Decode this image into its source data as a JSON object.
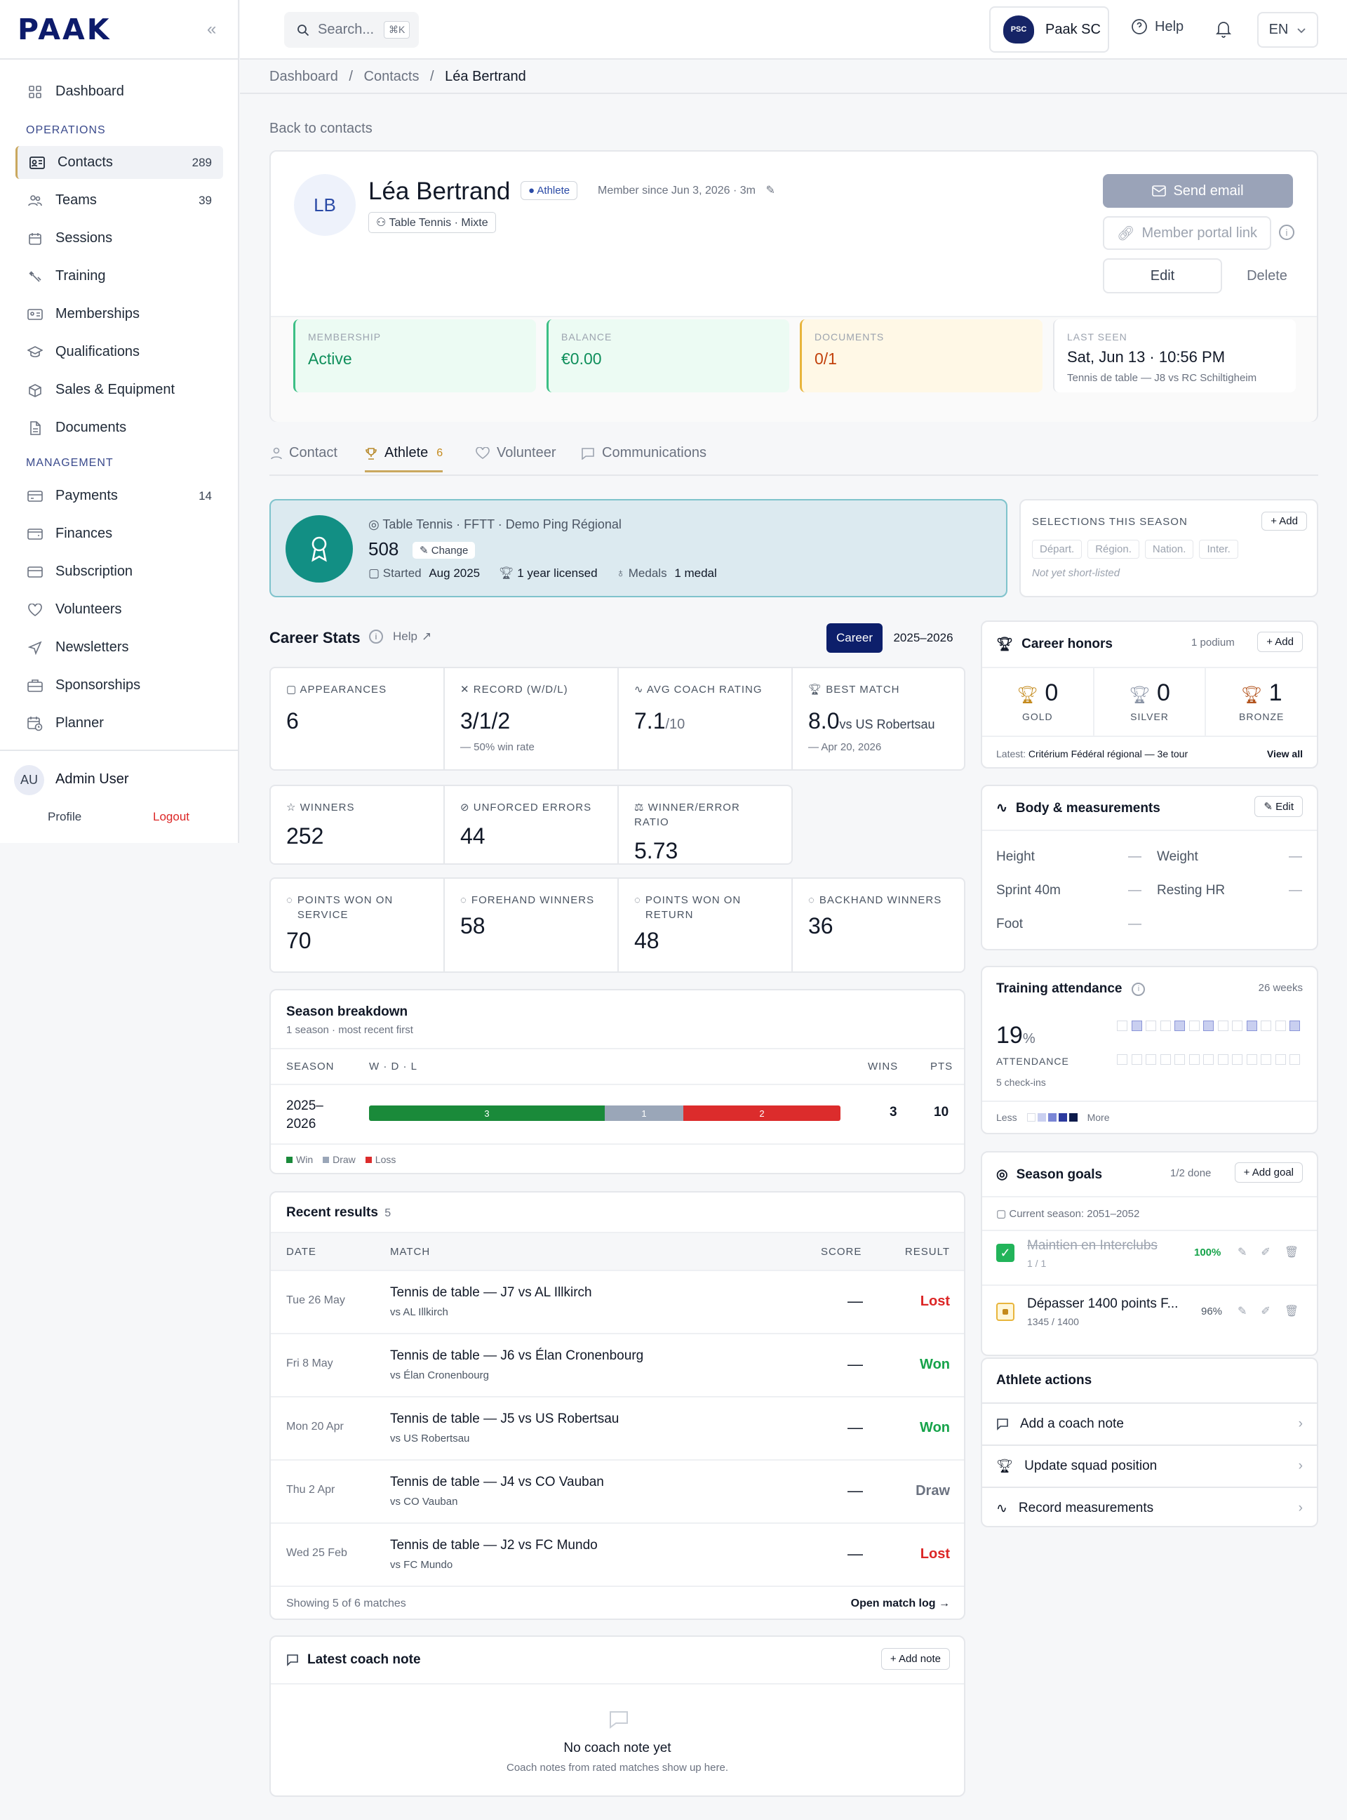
{
  "app": {
    "logo": "PAAK",
    "club_name": "Paak SC",
    "help": "Help",
    "lang": "EN",
    "search_placeholder": "Search...",
    "search_shortcut": "⌘K"
  },
  "sidebar": {
    "dashboard": "Dashboard",
    "operations_label": "OPERATIONS",
    "items_ops": [
      {
        "label": "Contacts",
        "count": "289"
      },
      {
        "label": "Teams",
        "count": "39"
      },
      {
        "label": "Sessions",
        "count": ""
      },
      {
        "label": "Training",
        "count": ""
      },
      {
        "label": "Memberships",
        "count": ""
      },
      {
        "label": "Qualifications",
        "count": ""
      },
      {
        "label": "Sales & Equipment",
        "count": ""
      },
      {
        "label": "Documents",
        "count": ""
      }
    ],
    "management_label": "MANAGEMENT",
    "items_mgmt": [
      {
        "label": "Payments",
        "count": "14"
      },
      {
        "label": "Finances",
        "count": ""
      },
      {
        "label": "Subscription",
        "count": ""
      },
      {
        "label": "Volunteers",
        "count": ""
      },
      {
        "label": "Newsletters",
        "count": ""
      },
      {
        "label": "Sponsorships",
        "count": ""
      },
      {
        "label": "Planner",
        "count": ""
      }
    ],
    "user": {
      "initials": "AU",
      "name": "Admin User",
      "profile": "Profile",
      "logout": "Logout"
    }
  },
  "breadcrumb": {
    "a": "Dashboard",
    "b": "Contacts",
    "c": "Léa Bertrand"
  },
  "back_link": "Back to contacts",
  "profile": {
    "initials": "LB",
    "name": "Léa Bertrand",
    "role_badge": "Athlete",
    "member_since": "Member since Jun 3, 2026 · 3m",
    "sport": "Table Tennis · Mixte",
    "send_email": "Send email",
    "portal_link": "Member portal link",
    "edit": "Edit",
    "delete": "Delete"
  },
  "summary": [
    {
      "label": "MEMBERSHIP",
      "value": "Active",
      "sub": ""
    },
    {
      "label": "BALANCE",
      "value": "€0.00",
      "sub": ""
    },
    {
      "label": "DOCUMENTS",
      "value": "0/1",
      "sub": ""
    },
    {
      "label": "LAST SEEN",
      "value": "Sat, Jun 13 · 10:56 PM",
      "sub": "Tennis de table — J8 vs RC Schiltigheim"
    }
  ],
  "tabs": [
    {
      "label": "Contact"
    },
    {
      "label": "Athlete",
      "count": "6"
    },
    {
      "label": "Volunteer"
    },
    {
      "label": "Communications"
    }
  ],
  "licence": {
    "federation": "Table Tennis · FFTT · Demo Ping Régional",
    "ranking": "508",
    "change": "Change",
    "started_label": "Started",
    "started": "Aug 2025",
    "licensed": "1 year licensed",
    "medals_label": "Medals",
    "medals": "1 medal"
  },
  "selections": {
    "title": "SELECTIONS THIS SEASON",
    "add": "Add",
    "levels": [
      "Départ.",
      "Région.",
      "Nation.",
      "Inter."
    ],
    "note": "Not yet short-listed"
  },
  "career": {
    "title": "Career Stats",
    "help": "Help",
    "toggle_a": "Career",
    "toggle_b": "2025–2026",
    "row1": [
      {
        "label": "APPEARANCES",
        "value": "6",
        "unit": "",
        "sub": ""
      },
      {
        "label": "RECORD (W/D/L)",
        "value": "3/1/2",
        "unit": "",
        "sub": "— 50% win rate"
      },
      {
        "label": "AVG COACH RATING",
        "value": "7.1",
        "unit": "/10",
        "sub": ""
      },
      {
        "label": "BEST MATCH",
        "value": "8.0",
        "unit": "vs US Robertsau",
        "sub": "— Apr 20, 2026"
      }
    ],
    "row2": [
      {
        "label": "WINNERS",
        "value": "252"
      },
      {
        "label": "UNFORCED ERRORS",
        "value": "44"
      },
      {
        "label": "WINNER/ERROR RATIO",
        "value": "5.73"
      }
    ],
    "row3": [
      {
        "label": "POINTS WON ON SERVICE",
        "value": "70"
      },
      {
        "label": "FOREHAND WINNERS",
        "value": "58"
      },
      {
        "label": "POINTS WON ON RETURN",
        "value": "48"
      },
      {
        "label": "BACKHAND WINNERS",
        "value": "36"
      }
    ]
  },
  "breakdown": {
    "title": "Season breakdown",
    "subtitle": "1 season · most recent first",
    "h_season": "SEASON",
    "h_wdl": "W · D · L",
    "h_wins": "WINS",
    "h_pts": "PTS",
    "season": "2025–2026",
    "w": 3,
    "d": 1,
    "l": 2,
    "wins": "3",
    "pts": "10",
    "legend": [
      "Win",
      "Draw",
      "Loss"
    ],
    "colors": {
      "win": "#1a8a3a",
      "draw": "#9aa6b8",
      "loss": "#dc2c2c"
    }
  },
  "results": {
    "title": "Recent results",
    "count": "5",
    "h_date": "DATE",
    "h_match": "MATCH",
    "h_score": "SCORE",
    "h_result": "RESULT",
    "rows": [
      {
        "date": "Tue 26 May",
        "match": "Tennis de table — J7 vs AL Illkirch",
        "vs": "vs AL Illkirch",
        "score": "—",
        "result": "Lost"
      },
      {
        "date": "Fri 8 May",
        "match": "Tennis de table — J6 vs Élan Cronenbourg",
        "vs": "vs Élan Cronenbourg",
        "score": "—",
        "result": "Won"
      },
      {
        "date": "Mon 20 Apr",
        "match": "Tennis de table — J5 vs US Robertsau",
        "vs": "vs US Robertsau",
        "score": "—",
        "result": "Won"
      },
      {
        "date": "Thu 2 Apr",
        "match": "Tennis de table — J4 vs CO Vauban",
        "vs": "vs CO Vauban",
        "score": "—",
        "result": "Draw"
      },
      {
        "date": "Wed 25 Feb",
        "match": "Tennis de table — J2 vs FC Mundo",
        "vs": "vs FC Mundo",
        "score": "—",
        "result": "Lost"
      }
    ],
    "footer": "Showing 5 of 6 matches",
    "open_log": "Open match log"
  },
  "coach_note": {
    "title": "Latest coach note",
    "add": "Add note",
    "empty": "No coach note yet",
    "empty_sub": "Coach notes from rated matches show up here."
  },
  "honors": {
    "title": "Career honors",
    "podium": "1 podium",
    "add": "Add",
    "gold": "0",
    "silver": "0",
    "bronze": "1",
    "gold_l": "GOLD",
    "silver_l": "SILVER",
    "bronze_l": "BRONZE",
    "latest_label": "Latest:",
    "latest": "Critérium Fédéral régional — 3e tour",
    "view_all": "View all"
  },
  "body": {
    "title": "Body & measurements",
    "edit": "Edit",
    "height": "Height",
    "weight": "Weight",
    "sprint": "Sprint 40m",
    "hr": "Resting HR",
    "foot": "Foot",
    "empty": "—"
  },
  "attendance": {
    "title": "Training attendance",
    "weeks": "26 weeks",
    "value": "19",
    "unit": "%",
    "label": "ATTENDANCE",
    "checkins": "5 check-ins",
    "less": "Less",
    "more": "More",
    "percent": 19
  },
  "goals": {
    "title": "Season goals",
    "done": "1/2 done",
    "add": "Add goal",
    "season": "Current season: 2051–2052",
    "items": [
      {
        "name": "Maintien en Interclubs",
        "progress": "1 / 1",
        "pct": "100%"
      },
      {
        "name": "Dépasser 1400 points F...",
        "progress": "1345 / 1400",
        "pct": "96%"
      }
    ]
  },
  "actions": {
    "title": "Athlete actions",
    "items": [
      "Add a coach note",
      "Update squad position",
      "Record measurements"
    ]
  }
}
